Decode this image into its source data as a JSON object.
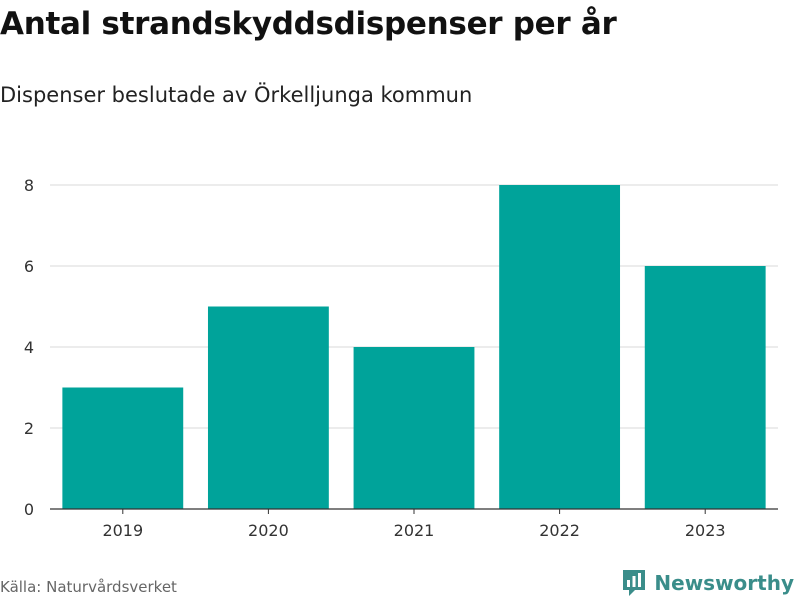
{
  "title": "Antal strandskyddsdispenser per år",
  "subtitle": "Dispenser beslutade av Örkelljunga kommun",
  "source": "Källa: Naturvårdsverket",
  "brand": {
    "name": "Newsworthy",
    "logo_icon": "newsworthy-logo-icon",
    "color": "#3a8d8a"
  },
  "colors": {
    "bar": "#00a39a",
    "grid": "#d9d9d9",
    "axis": "#333333",
    "tick_text": "#333333"
  },
  "chart_data": {
    "type": "bar",
    "title": "Antal strandskyddsdispenser per år",
    "subtitle": "Dispenser beslutade av Örkelljunga kommun",
    "xlabel": "",
    "ylabel": "",
    "categories": [
      "2019",
      "2020",
      "2021",
      "2022",
      "2023"
    ],
    "values": [
      3,
      5,
      4,
      8,
      6
    ],
    "ylim": [
      0,
      8
    ],
    "yticks": [
      "0",
      "2",
      "4",
      "6",
      "8"
    ],
    "grid": true,
    "legend": "none"
  }
}
